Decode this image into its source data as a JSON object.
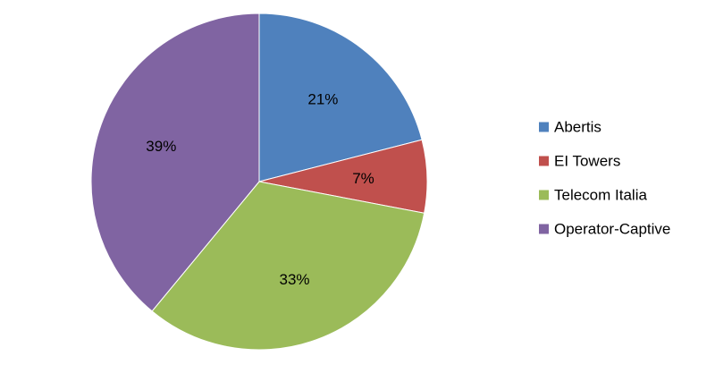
{
  "chart_data": {
    "type": "pie",
    "categories": [
      "Abertis",
      "EI Towers",
      "Telecom Italia",
      "Operator-Captive"
    ],
    "values": [
      21,
      7,
      33,
      39
    ],
    "data_labels": [
      "21%",
      "7%",
      "33%",
      "39%"
    ],
    "colors": [
      "#4f81bd",
      "#c0504d",
      "#9bbb59",
      "#8064a2"
    ],
    "start_angle": "12 o'clock",
    "direction": "clockwise",
    "legend_position": "right"
  }
}
